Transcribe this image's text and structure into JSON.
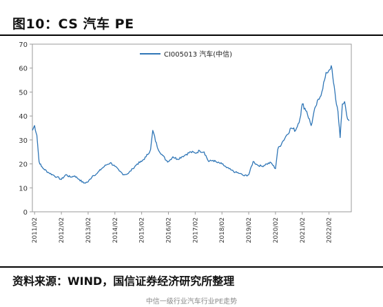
{
  "figure": {
    "title": "图10：CS 汽车 PE",
    "source": "资料来源：WIND，国信证券经济研究所整理",
    "footer": "中信一级行业汽车行业PE走势"
  },
  "chart_data": {
    "type": "line",
    "title": "",
    "xlabel": "",
    "ylabel": "",
    "ylim": [
      0,
      70
    ],
    "yticks": [
      0,
      10,
      20,
      30,
      40,
      50,
      60,
      70
    ],
    "xticks": [
      "2011/02",
      "2012/02",
      "2013/02",
      "2014/02",
      "2015/02",
      "2016/02",
      "2017/02",
      "2018/02",
      "2019/02",
      "2020/02",
      "2021/02",
      "2022/02"
    ],
    "grid": false,
    "legend_position": "top-center",
    "series": [
      {
        "name": "CI005013 汽车(中信)",
        "color": "#2e75b6",
        "x": [
          "2011/01",
          "2011/02",
          "2011/03",
          "2011/04",
          "2011/05",
          "2011/06",
          "2011/08",
          "2011/10",
          "2011/12",
          "2012/02",
          "2012/04",
          "2012/06",
          "2012/08",
          "2012/10",
          "2012/12",
          "2013/02",
          "2013/04",
          "2013/06",
          "2013/08",
          "2013/10",
          "2013/12",
          "2014/02",
          "2014/04",
          "2014/06",
          "2014/08",
          "2014/10",
          "2014/12",
          "2015/02",
          "2015/04",
          "2015/06",
          "2015/07",
          "2015/09",
          "2015/11",
          "2016/01",
          "2016/02",
          "2016/04",
          "2016/06",
          "2016/08",
          "2016/10",
          "2016/12",
          "2017/02",
          "2017/04",
          "2017/06",
          "2017/08",
          "2017/10",
          "2017/12",
          "2018/02",
          "2018/04",
          "2018/06",
          "2018/08",
          "2018/10",
          "2018/12",
          "2019/02",
          "2019/04",
          "2019/06",
          "2019/08",
          "2019/10",
          "2019/12",
          "2020/02",
          "2020/03",
          "2020/05",
          "2020/07",
          "2020/09",
          "2020/11",
          "2021/01",
          "2021/02",
          "2021/04",
          "2021/06",
          "2021/08",
          "2021/10",
          "2021/12",
          "2022/01",
          "2022/03",
          "2022/04",
          "2022/05",
          "2022/06",
          "2022/07",
          "2022/08",
          "2022/09",
          "2022/10",
          "2022/11"
        ],
        "y": [
          34,
          36,
          32,
          21,
          19,
          18,
          16.5,
          15.5,
          14.5,
          13.5,
          15.5,
          14.5,
          15,
          13.5,
          12,
          12.5,
          15,
          16,
          18,
          19.5,
          20.5,
          19,
          17,
          15.5,
          16,
          18,
          20,
          21,
          23,
          26,
          34,
          27,
          24,
          21.5,
          21,
          23,
          22,
          23,
          24,
          25,
          24.5,
          25.5,
          25,
          21,
          21.5,
          20.5,
          20,
          18.5,
          17.5,
          16.5,
          16,
          15,
          15.5,
          21,
          19.5,
          19,
          20,
          20.5,
          18,
          26,
          29,
          32,
          35,
          34,
          39,
          45,
          42,
          36,
          44,
          48,
          55,
          58,
          61,
          54,
          47,
          42,
          31,
          45,
          46,
          40,
          38
        ]
      }
    ]
  }
}
